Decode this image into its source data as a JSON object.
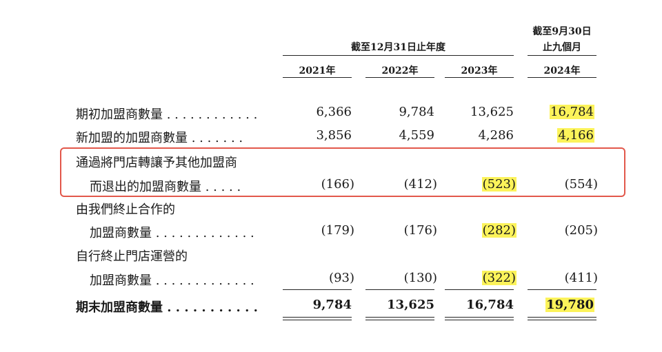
{
  "header": {
    "year_end_group": "截至12月31日止年度",
    "nine_month_group_line1": "截至9月30日",
    "nine_month_group_line2": "止九個月",
    "columns": [
      "2021年",
      "2022年",
      "2023年",
      "2024年"
    ]
  },
  "rows": [
    {
      "label_lines": [
        "期初加盟商數量 . . . . . . . . . . . ."
      ],
      "values": [
        "6,366",
        "9,784",
        "13,625",
        "16,784"
      ],
      "highlight": [
        false,
        false,
        false,
        true
      ],
      "bold": false
    },
    {
      "label_lines": [
        "新加盟的加盟商數量 . . . . . . ."
      ],
      "values": [
        "3,856",
        "4,559",
        "4,286",
        "4,166"
      ],
      "highlight": [
        false,
        false,
        false,
        true
      ],
      "bold": false
    },
    {
      "label_lines": [
        "通過將門店轉讓予其他加盟商",
        "而退出的加盟商數量 . . . . ."
      ],
      "values": [
        "(166)",
        "(412)",
        "(523)",
        "(554)"
      ],
      "highlight": [
        false,
        false,
        true,
        false
      ],
      "bold": false
    },
    {
      "label_lines": [
        "由我們終止合作的",
        "加盟商數量 . . . . . . . . . . . . ."
      ],
      "values": [
        "(179)",
        "(176)",
        "(282)",
        "(205)"
      ],
      "highlight": [
        false,
        false,
        true,
        false
      ],
      "bold": false
    },
    {
      "label_lines": [
        "自行終止門店運營的",
        "加盟商數量 . . . . . . . . . . . . ."
      ],
      "values": [
        "(93)",
        "(130)",
        "(322)",
        "(411)"
      ],
      "highlight": [
        false,
        false,
        true,
        false
      ],
      "bold": false
    },
    {
      "label_lines": [
        "期末加盟商數量 . . . . . . . . . . ."
      ],
      "values": [
        "9,784",
        "13,625",
        "16,784",
        "19,780"
      ],
      "highlight": [
        false,
        false,
        false,
        true
      ],
      "bold": true
    }
  ],
  "colors": {
    "highlight": "#fcf35a",
    "box": "#e2574a"
  }
}
